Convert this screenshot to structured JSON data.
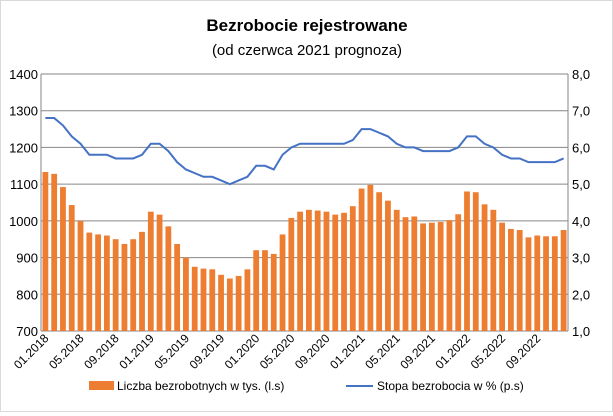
{
  "chart_data": {
    "type": "bar+line",
    "title": "Bezrobocie rejestrowane",
    "subtitle": "(od czerwca 2021 prognoza)",
    "categories": [
      "01.2018",
      "02.2018",
      "03.2018",
      "04.2018",
      "05.2018",
      "06.2018",
      "07.2018",
      "08.2018",
      "09.2018",
      "10.2018",
      "11.2018",
      "12.2018",
      "01.2019",
      "02.2019",
      "03.2019",
      "04.2019",
      "05.2019",
      "06.2019",
      "07.2019",
      "08.2019",
      "09.2019",
      "10.2019",
      "11.2019",
      "12.2019",
      "01.2020",
      "02.2020",
      "03.2020",
      "04.2020",
      "05.2020",
      "06.2020",
      "07.2020",
      "08.2020",
      "09.2020",
      "10.2020",
      "11.2020",
      "12.2020",
      "01.2021",
      "02.2021",
      "03.2021",
      "04.2021",
      "05.2021",
      "06.2021",
      "07.2021",
      "08.2021",
      "09.2021",
      "10.2021",
      "11.2021",
      "12.2021",
      "01.2022",
      "02.2022",
      "03.2022",
      "04.2022",
      "05.2022",
      "06.2022",
      "07.2022",
      "08.2022",
      "09.2022",
      "10.2022",
      "11.2022",
      "12.2022"
    ],
    "x_tick_labels": [
      "01.2018",
      "05.2018",
      "09.2018",
      "01.2019",
      "05.2019",
      "09.2019",
      "01.2020",
      "05.2020",
      "09.2020",
      "01.2021",
      "05.2021",
      "09.2021",
      "01.2022",
      "05.2022",
      "09.2022"
    ],
    "series": [
      {
        "name": "Liczba bezrobotnych w tys. (l.s)",
        "type": "bar",
        "axis": "left",
        "color": "#ed7d31",
        "values": [
          1133,
          1128,
          1092,
          1043,
          1000,
          968,
          963,
          960,
          950,
          937,
          950,
          970,
          1025,
          1017,
          985,
          937,
          900,
          875,
          870,
          868,
          853,
          843,
          850,
          868,
          920,
          920,
          910,
          963,
          1008,
          1025,
          1030,
          1028,
          1025,
          1017,
          1022,
          1040,
          1088,
          1098,
          1078,
          1055,
          1030,
          1010,
          1012,
          993,
          995,
          997,
          1002,
          1018,
          1080,
          1078,
          1045,
          1030,
          995,
          978,
          975,
          955,
          960,
          958,
          958,
          975
        ]
      },
      {
        "name": "Stopa bezrobocia w % (p.s)",
        "type": "line",
        "axis": "right",
        "color": "#4472c4",
        "values": [
          6.8,
          6.8,
          6.6,
          6.3,
          6.1,
          5.8,
          5.8,
          5.8,
          5.7,
          5.7,
          5.7,
          5.8,
          6.1,
          6.1,
          5.9,
          5.6,
          5.4,
          5.3,
          5.2,
          5.2,
          5.1,
          5.0,
          5.1,
          5.2,
          5.5,
          5.5,
          5.4,
          5.8,
          6.0,
          6.1,
          6.1,
          6.1,
          6.1,
          6.1,
          6.1,
          6.2,
          6.5,
          6.5,
          6.4,
          6.3,
          6.1,
          6.0,
          6.0,
          5.9,
          5.9,
          5.9,
          5.9,
          6.0,
          6.3,
          6.3,
          6.1,
          6.0,
          5.8,
          5.7,
          5.7,
          5.6,
          5.6,
          5.6,
          5.6,
          5.7
        ]
      }
    ],
    "ylim_left": [
      700,
      1400
    ],
    "yticks_left": [
      "700",
      "800",
      "900",
      "1000",
      "1100",
      "1200",
      "1300",
      "1400"
    ],
    "ylim_right": [
      1,
      8
    ],
    "yticks_right": [
      "1,0",
      "2,0",
      "3,0",
      "4,0",
      "5,0",
      "6,0",
      "7,0",
      "8,0"
    ],
    "grid": true,
    "legend": "bottom"
  }
}
